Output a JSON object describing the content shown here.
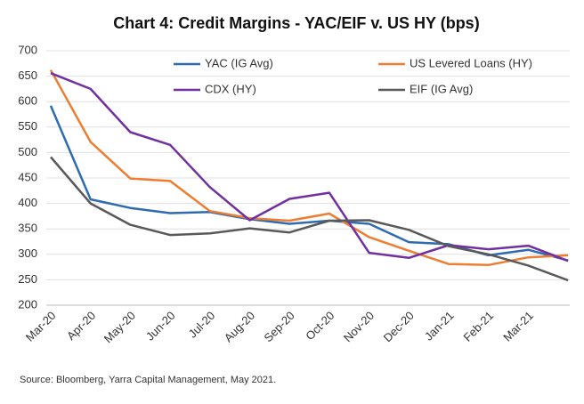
{
  "chart_data": {
    "type": "line",
    "title": "Chart 4: Credit Margins - YAC/EIF v. US HY (bps)",
    "source": "Source: Bloomberg, Yarra Capital Management, May 2021.",
    "categories": [
      "Mar-20",
      "Apr-20",
      "May-20",
      "Jun-20",
      "Jul-20",
      "Aug-20",
      "Sep-20",
      "Oct-20",
      "Nov-20",
      "Dec-20",
      "Jan-21",
      "Feb-21",
      "Mar-21",
      null
    ],
    "series": [
      {
        "name": "YAC (IG Avg)",
        "color": "#2e6bb0",
        "values": [
          592,
          408,
          391,
          381,
          383,
          369,
          360,
          366,
          360,
          324,
          320,
          298,
          309,
          288
        ]
      },
      {
        "name": "US Levered Loans (HY)",
        "color": "#ed7d31",
        "values": [
          662,
          521,
          449,
          444,
          385,
          371,
          366,
          380,
          334,
          307,
          281,
          279,
          294,
          298
        ]
      },
      {
        "name": "CDX (HY)",
        "color": "#7030a0",
        "values": [
          656,
          625,
          540,
          515,
          432,
          367,
          409,
          421,
          303,
          293,
          318,
          310,
          317,
          287
        ]
      },
      {
        "name": "EIF (IG Avg)",
        "color": "#595959",
        "values": [
          491,
          400,
          358,
          338,
          341,
          351,
          343,
          366,
          367,
          348,
          316,
          300,
          278,
          249
        ]
      }
    ],
    "ylim": [
      200,
      700
    ],
    "yticks": [
      200,
      250,
      300,
      350,
      400,
      450,
      500,
      550,
      600,
      650,
      700
    ],
    "grid": true
  }
}
